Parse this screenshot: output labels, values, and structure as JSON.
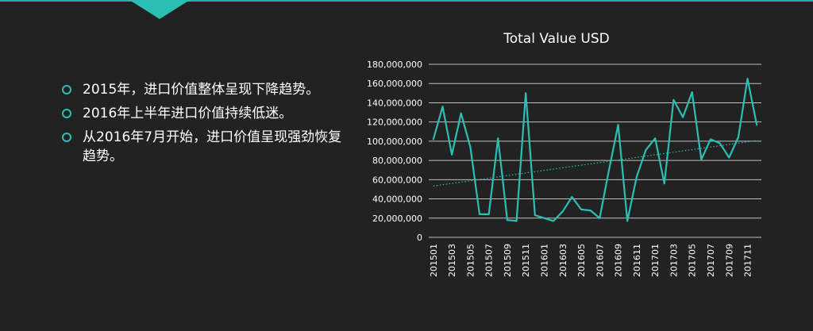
{
  "bullets": [
    "2015年，进口价值整体呈现下降趋势。",
    "2016年上半年进口价值持续低迷。",
    "从2016年7月开始，进口价值呈现强劲恢复趋势。"
  ],
  "colors": {
    "accent": "#2bbfb4",
    "background": "#222222",
    "text": "#ffffff",
    "grid": "#bfbfbf"
  },
  "chart_data": {
    "type": "line",
    "title": "Total Value USD",
    "xlabel": "",
    "ylabel": "",
    "ylim": [
      0,
      180000000
    ],
    "yticks": [
      "0",
      "20,000,000",
      "40,000,000",
      "60,000,000",
      "80,000,000",
      "100,000,000",
      "120,000,000",
      "140,000,000",
      "160,000,000",
      "180,000,000"
    ],
    "grid": true,
    "legend": "none",
    "trendline": "linear (dotted)",
    "categories": [
      "201501",
      "201502",
      "201503",
      "201504",
      "201505",
      "201506",
      "201507",
      "201508",
      "201509",
      "201510",
      "201511",
      "201512",
      "201601",
      "201602",
      "201603",
      "201604",
      "201605",
      "201606",
      "201607",
      "201608",
      "201609",
      "201610",
      "201611",
      "201612",
      "201701",
      "201702",
      "201703",
      "201704",
      "201705",
      "201706",
      "201707",
      "201708",
      "201709",
      "201710",
      "201711",
      "201712"
    ],
    "tick_labels": [
      "201501",
      "201503",
      "201505",
      "201507",
      "201509",
      "201511",
      "201601",
      "201603",
      "201605",
      "201607",
      "201609",
      "201611",
      "201701",
      "201703",
      "201705",
      "201707",
      "201709",
      "201711"
    ],
    "series": [
      {
        "values": [
          102000000,
          136000000,
          86000000,
          129000000,
          94000000,
          24000000,
          24000000,
          103000000,
          18000000,
          17000000,
          150000000,
          23000000,
          20000000,
          17000000,
          27000000,
          42000000,
          29000000,
          28000000,
          20000000,
          70000000,
          117000000,
          17000000,
          63000000,
          91000000,
          103000000,
          56000000,
          143000000,
          125000000,
          151000000,
          81000000,
          102000000,
          98000000,
          83000000,
          104000000,
          165000000,
          117000000
        ]
      }
    ]
  }
}
